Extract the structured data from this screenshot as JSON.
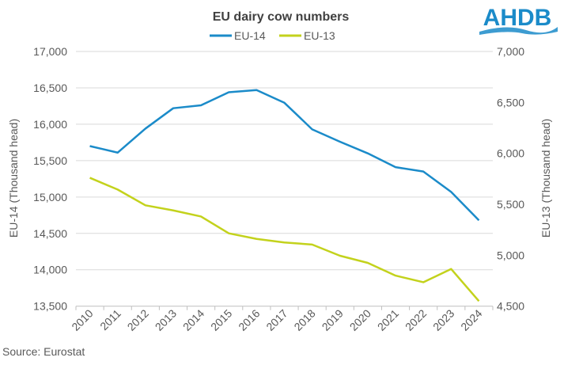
{
  "logo": {
    "text": "AHDB",
    "color": "#1b8bc9"
  },
  "source": "Source: Eurostat",
  "chart_data": {
    "type": "line",
    "title": "EU dairy cow numbers",
    "categories": [
      "2010",
      "2011",
      "2012",
      "2013",
      "2014",
      "2015",
      "2016",
      "2017",
      "2018",
      "2019",
      "2020",
      "2021",
      "2022",
      "2023",
      "2024"
    ],
    "legend_position": "top",
    "grid": true,
    "y_left": {
      "label": "EU-14 (Thousand head)",
      "range": [
        13500,
        17000
      ],
      "ticks": [
        "13,500",
        "14,000",
        "14,500",
        "15,000",
        "15,500",
        "16,000",
        "16,500",
        "17,000"
      ]
    },
    "y_right": {
      "label": "EU-13 (Thousand head)",
      "range": [
        4500,
        7000
      ],
      "ticks": [
        "4,500",
        "5,000",
        "5,500",
        "6,000",
        "6,500",
        "7,000"
      ]
    },
    "series": [
      {
        "name": "EU-14",
        "axis": "left",
        "color": "#1b8bc9",
        "values": [
          15700,
          15610,
          15940,
          16220,
          16260,
          16440,
          16470,
          16295,
          15930,
          15760,
          15600,
          15410,
          15350,
          15070,
          14680
        ]
      },
      {
        "name": "EU-13",
        "axis": "right",
        "color": "#c3d21c",
        "values": [
          5760,
          5645,
          5490,
          5440,
          5380,
          5215,
          5160,
          5125,
          5105,
          4995,
          4925,
          4800,
          4735,
          4865,
          4550
        ]
      }
    ]
  }
}
